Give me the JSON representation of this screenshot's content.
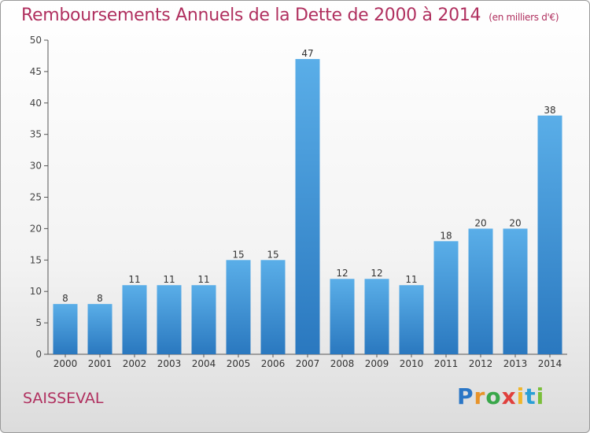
{
  "header": {
    "title": "Remboursements Annuels de la Dette de 2000 à 2014",
    "unit": "(en milliers d'€)"
  },
  "footer": {
    "commune": "SAISSEVAL",
    "logo": "Proxiti"
  },
  "colors": {
    "title": "#b0305f",
    "bar_light": "#5aaee8",
    "bar_dark": "#2a78bf",
    "axis": "#555555"
  },
  "chart_data": {
    "type": "bar",
    "categories": [
      "2000",
      "2001",
      "2002",
      "2003",
      "2004",
      "2005",
      "2006",
      "2007",
      "2008",
      "2009",
      "2010",
      "2011",
      "2012",
      "2013",
      "2014"
    ],
    "values": [
      8,
      8,
      11,
      11,
      11,
      15,
      15,
      47,
      12,
      12,
      11,
      18,
      20,
      20,
      38
    ],
    "data_labels": [
      "8",
      "8",
      "11",
      "11",
      "11",
      "15",
      "15",
      "47",
      "12",
      "12",
      "11",
      "18",
      "20",
      "20",
      "38"
    ],
    "title": "Remboursements Annuels de la Dette de 2000 à 2014",
    "xlabel": "",
    "ylabel": "",
    "ylim": [
      0,
      50
    ],
    "yticks": [
      0,
      5,
      10,
      15,
      20,
      25,
      30,
      35,
      40,
      45,
      50
    ],
    "grid": false,
    "legend": "none"
  }
}
